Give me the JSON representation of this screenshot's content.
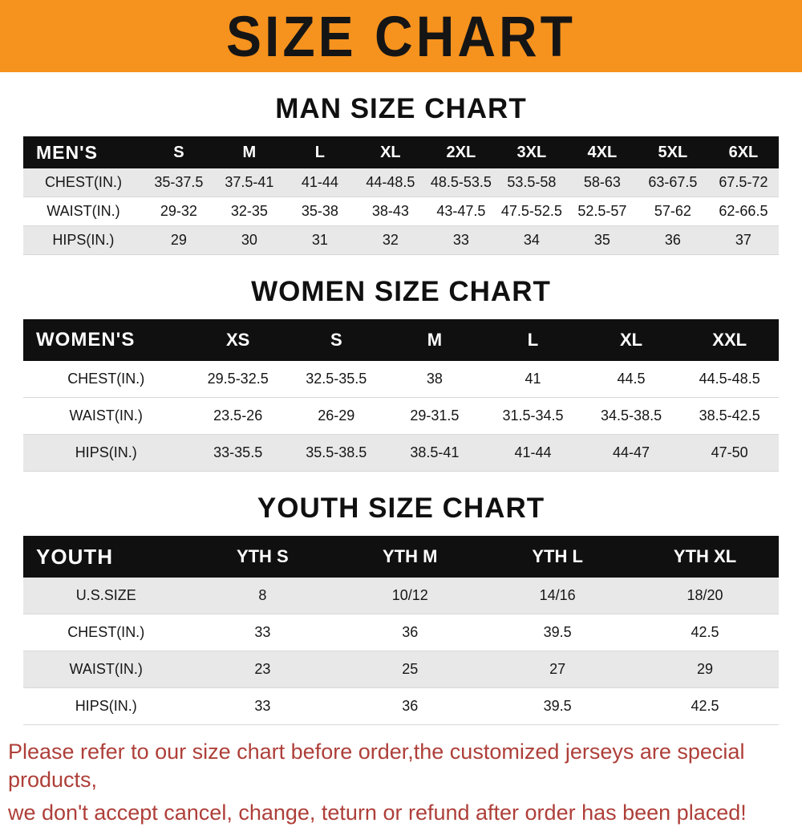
{
  "banner": {
    "title": "SIZE CHART"
  },
  "sections": [
    {
      "id": "mens",
      "heading": "MAN SIZE CHART",
      "table": {
        "header": [
          "MEN'S",
          "S",
          "M",
          "L",
          "XL",
          "2XL",
          "3XL",
          "4XL",
          "5XL",
          "6XL"
        ],
        "rows": [
          [
            "CHEST(IN.)",
            "35-37.5",
            "37.5-41",
            "41-44",
            "44-48.5",
            "48.5-53.5",
            "53.5-58",
            "58-63",
            "63-67.5",
            "67.5-72"
          ],
          [
            "WAIST(IN.)",
            "29-32",
            "32-35",
            "35-38",
            "38-43",
            "43-47.5",
            "47.5-52.5",
            "52.5-57",
            "57-62",
            "62-66.5"
          ],
          [
            "HIPS(IN.)",
            "29",
            "30",
            "31",
            "32",
            "33",
            "34",
            "35",
            "36",
            "37"
          ]
        ]
      }
    },
    {
      "id": "womens",
      "heading": "WOMEN SIZE CHART",
      "table": {
        "header": [
          "WOMEN'S",
          "XS",
          "S",
          "M",
          "L",
          "XL",
          "XXL"
        ],
        "rows": [
          [
            "CHEST(IN.)",
            "29.5-32.5",
            "32.5-35.5",
            "38",
            "41",
            "44.5",
            "44.5-48.5"
          ],
          [
            "WAIST(IN.)",
            "23.5-26",
            "26-29",
            "29-31.5",
            "31.5-34.5",
            "34.5-38.5",
            "38.5-42.5"
          ],
          [
            "HIPS(IN.)",
            "33-35.5",
            "35.5-38.5",
            "38.5-41",
            "41-44",
            "44-47",
            "47-50"
          ]
        ]
      }
    },
    {
      "id": "youth",
      "heading": "YOUTH SIZE CHART",
      "table": {
        "header": [
          "YOUTH",
          "YTH S",
          "YTH M",
          "YTH L",
          "YTH XL"
        ],
        "rows": [
          [
            "U.S.SIZE",
            "8",
            "10/12",
            "14/16",
            "18/20"
          ],
          [
            "CHEST(IN.)",
            "33",
            "36",
            "39.5",
            "42.5"
          ],
          [
            "WAIST(IN.)",
            "23",
            "25",
            "27",
            "29"
          ],
          [
            "HIPS(IN.)",
            "33",
            "36",
            "39.5",
            "42.5"
          ]
        ]
      }
    }
  ],
  "footer": {
    "lines": [
      "Please refer to our size chart before order,the customized jerseys are special products,",
      "we don't accept cancel, change, teturn or refund after order has been placed!"
    ]
  },
  "colors": {
    "banner_orange": "#f6921e",
    "header_black": "#101010",
    "row_stripe_gray": "#e8e8e8",
    "footer_red": "#ae3f39"
  }
}
